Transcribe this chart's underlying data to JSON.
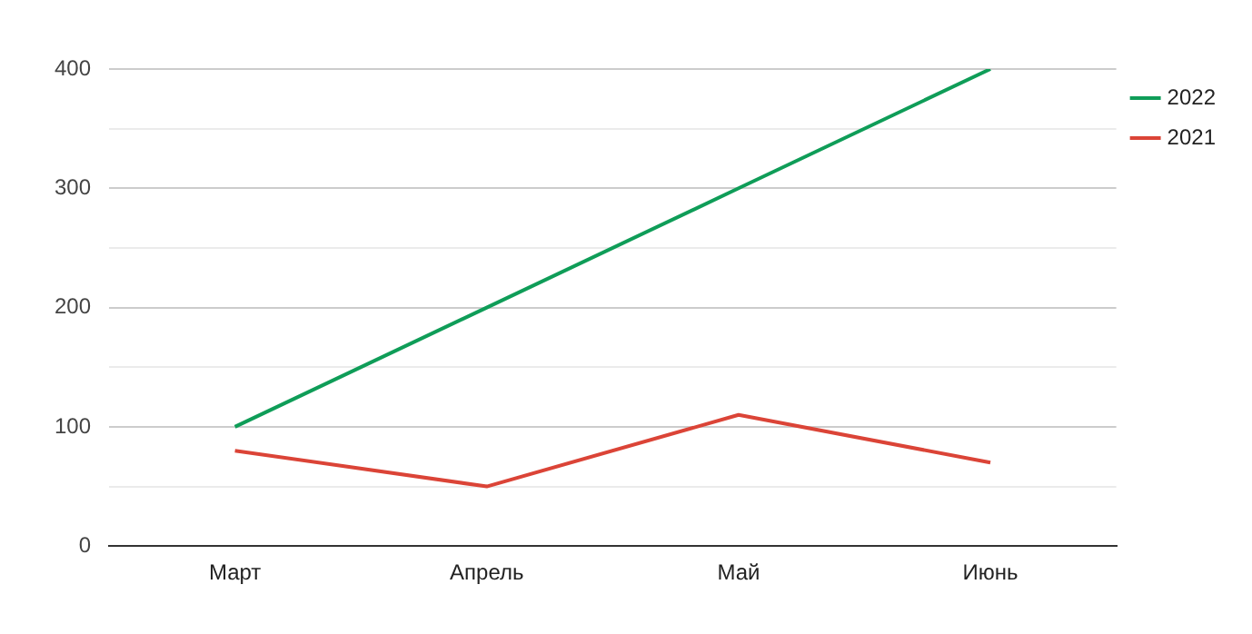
{
  "chart_data": {
    "type": "line",
    "categories": [
      "Март",
      "Апрель",
      "Май",
      "Июнь"
    ],
    "series": [
      {
        "name": "2022",
        "color": "#0f9d58",
        "values": [
          100,
          200,
          300,
          400
        ]
      },
      {
        "name": "2021",
        "color": "#db4437",
        "values": [
          80,
          50,
          110,
          70
        ]
      }
    ],
    "ylim": [
      0,
      400
    ],
    "yticks": [
      0,
      {
        "value": 50,
        "label": null
      },
      100,
      {
        "value": 150,
        "label": null
      },
      200,
      {
        "value": 250,
        "label": null
      },
      300,
      {
        "value": 350,
        "label": null
      },
      400
    ],
    "grid": "y",
    "legend": "right",
    "marker": "none",
    "line_style": "solid"
  }
}
